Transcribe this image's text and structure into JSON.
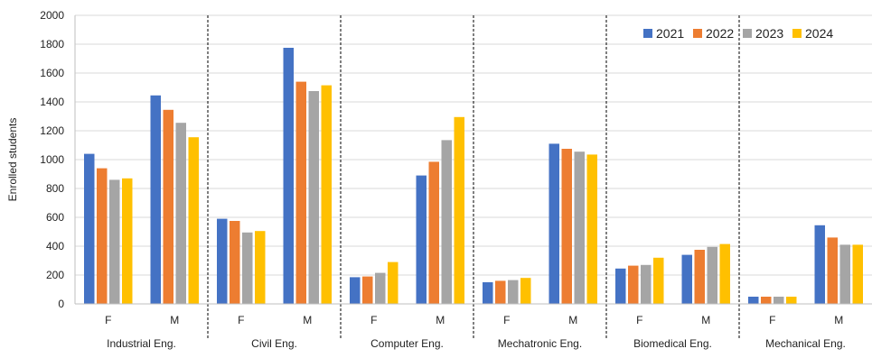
{
  "chart_data": {
    "type": "bar",
    "title": "",
    "xlabel": "",
    "ylabel": "Enrolled students",
    "ylim": [
      0,
      2000
    ],
    "yticks": [
      0,
      200,
      400,
      600,
      800,
      1000,
      1200,
      1400,
      1600,
      1800,
      2000
    ],
    "grid": true,
    "legend_position": "top-right",
    "groups": [
      "Industrial Eng.",
      "Civil Eng.",
      "Computer Eng.",
      "Mechatronic Eng.",
      "Biomedical Eng.",
      "Mechanical Eng."
    ],
    "subcategories": [
      "F",
      "M"
    ],
    "categories": [
      "Industrial Eng. F",
      "Industrial Eng. M",
      "Civil Eng. F",
      "Civil Eng. M",
      "Computer Eng. F",
      "Computer Eng. M",
      "Mechatronic Eng. F",
      "Mechatronic Eng. M",
      "Biomedical Eng. F",
      "Biomedical Eng. M",
      "Mechanical Eng. F",
      "Mechanical Eng. M"
    ],
    "series": [
      {
        "name": "2021",
        "color": "#4472C4",
        "values": [
          1040,
          1445,
          590,
          1775,
          185,
          890,
          150,
          1110,
          245,
          340,
          50,
          545
        ]
      },
      {
        "name": "2022",
        "color": "#ED7D31",
        "values": [
          940,
          1345,
          575,
          1540,
          190,
          985,
          160,
          1075,
          265,
          375,
          50,
          460
        ]
      },
      {
        "name": "2023",
        "color": "#A5A5A5",
        "values": [
          860,
          1255,
          495,
          1475,
          215,
          1135,
          165,
          1055,
          270,
          395,
          50,
          410
        ]
      },
      {
        "name": "2024",
        "color": "#FFC000",
        "values": [
          870,
          1155,
          505,
          1515,
          290,
          1295,
          180,
          1035,
          320,
          415,
          50,
          410
        ]
      }
    ]
  }
}
